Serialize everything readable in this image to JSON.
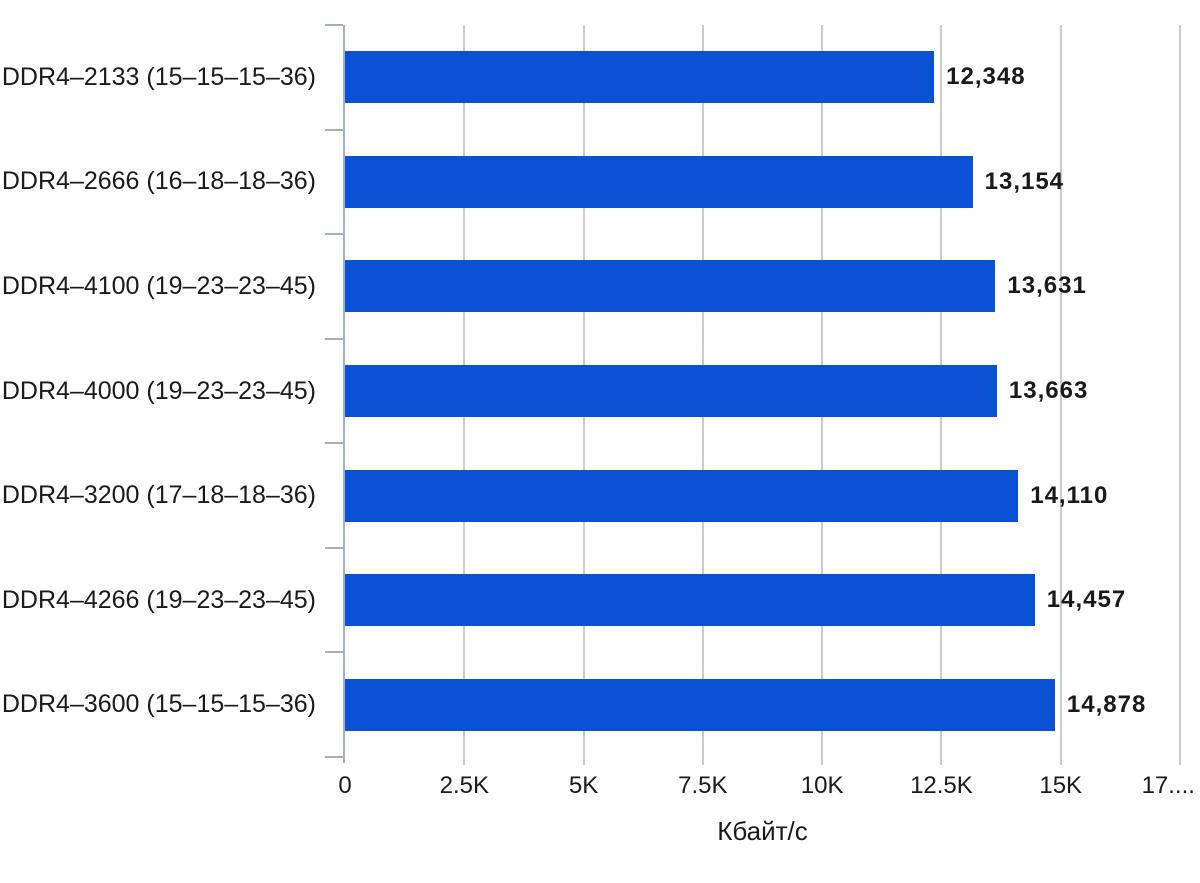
{
  "chart_data": {
    "type": "bar",
    "orientation": "horizontal",
    "title": "",
    "xlabel": "Кбайт/с",
    "ylabel": "",
    "categories": [
      "DDR4–2133 (15–15–15–36)",
      "DDR4–2666 (16–18–18–36)",
      "DDR4–4100 (19–23–23–45)",
      "DDR4–4000 (19–23–23–45)",
      "DDR4–3200 (17–18–18–36)",
      "DDR4–4266 (19–23–23–45)",
      "DDR4–3600 (15–15–15–36)"
    ],
    "values": [
      12348,
      13154,
      13631,
      13663,
      14110,
      14457,
      14878
    ],
    "value_labels": [
      "12,348",
      "13,154",
      "13,631",
      "13,663",
      "14,110",
      "14,457",
      "14,878"
    ],
    "x_ticks": [
      {
        "label": "0",
        "value": 0
      },
      {
        "label": "2.5K",
        "value": 2500
      },
      {
        "label": "5K",
        "value": 5000
      },
      {
        "label": "7.5K",
        "value": 7500
      },
      {
        "label": "10K",
        "value": 10000
      },
      {
        "label": "12.5K",
        "value": 12500
      },
      {
        "label": "15K",
        "value": 15000
      },
      {
        "label": "17....",
        "value": 17500
      }
    ],
    "xlim": [
      0,
      17500
    ],
    "grid": "vertical",
    "legend": "none",
    "colors": {
      "bar": "#0B51D5",
      "gridline": "#CBCBCB",
      "axis": "#9FB0C0",
      "text": "#1A1A1A",
      "background": "#FFFFFF"
    }
  }
}
